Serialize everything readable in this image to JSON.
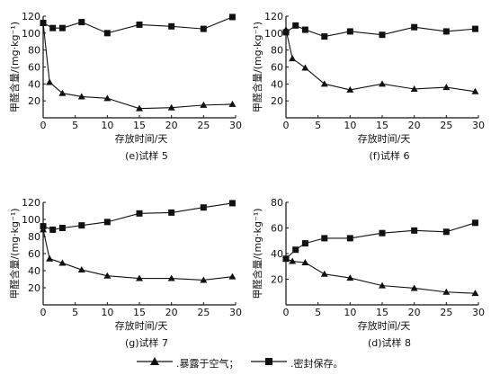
{
  "chart_data": [
    {
      "type": "line",
      "caption": "(e)试样 5",
      "xlabel": "存放时间/天",
      "ylabel": "甲醛含量/(mg·kg⁻¹)",
      "xlim": [
        0,
        30
      ],
      "ylim": [
        0,
        120
      ],
      "xticks": [
        0,
        5,
        10,
        15,
        20,
        25,
        30
      ],
      "yticks": [
        20,
        40,
        60,
        80,
        100,
        120
      ],
      "series": [
        {
          "name": "暴露于空气",
          "marker": "triangle",
          "x": [
            0,
            1,
            3,
            6,
            10,
            15,
            20,
            25,
            29.5
          ],
          "y": [
            112,
            42,
            29,
            25,
            23,
            11,
            12,
            15,
            16
          ]
        },
        {
          "name": "密封保存",
          "marker": "square",
          "x": [
            0,
            1.5,
            3,
            6,
            10,
            15,
            20,
            25,
            29.5
          ],
          "y": [
            112,
            106,
            106,
            113,
            100,
            110,
            108,
            105,
            119
          ]
        }
      ]
    },
    {
      "type": "line",
      "caption": "(f)试样 6",
      "xlabel": "存放时间/天",
      "ylabel": "甲醛含量/(mg·kg⁻¹)",
      "xlim": [
        0,
        30
      ],
      "ylim": [
        0,
        120
      ],
      "xticks": [
        0,
        5,
        10,
        15,
        20,
        25,
        30
      ],
      "yticks": [
        20,
        40,
        60,
        80,
        100,
        120
      ],
      "series": [
        {
          "name": "暴露于空气",
          "marker": "triangle",
          "x": [
            0,
            1,
            3,
            6,
            10,
            15,
            20,
            25,
            29.5
          ],
          "y": [
            104,
            70,
            59,
            40,
            33,
            40,
            34,
            36,
            31
          ]
        },
        {
          "name": "密封保存",
          "marker": "square",
          "x": [
            0,
            1.5,
            3,
            6,
            10,
            15,
            20,
            25,
            29.5
          ],
          "y": [
            101,
            109,
            104,
            96,
            102,
            98,
            107,
            102,
            105
          ]
        }
      ]
    },
    {
      "type": "line",
      "caption": "(g)试样 7",
      "xlabel": "存放时间/天",
      "ylabel": "甲醛含量/(mg·kg⁻¹)",
      "xlim": [
        0,
        30
      ],
      "ylim": [
        0,
        120
      ],
      "xticks": [
        0,
        5,
        10,
        15,
        20,
        25,
        30
      ],
      "yticks": [
        20,
        40,
        60,
        80,
        100,
        120
      ],
      "series": [
        {
          "name": "暴露于空气",
          "marker": "triangle",
          "x": [
            0,
            1,
            3,
            6,
            10,
            15,
            20,
            25,
            29.5
          ],
          "y": [
            88,
            54,
            49,
            41,
            34,
            31,
            31,
            29,
            33
          ]
        },
        {
          "name": "密封保存",
          "marker": "square",
          "x": [
            0,
            1.5,
            3,
            6,
            10,
            15,
            20,
            25,
            29.5
          ],
          "y": [
            92,
            88,
            90,
            93,
            97,
            107,
            108,
            114,
            119
          ]
        }
      ]
    },
    {
      "type": "line",
      "caption": "(d)试样 8",
      "xlabel": "存放时间/天",
      "ylabel": "甲醛含量/(mg·kg⁻¹)",
      "xlim": [
        0,
        30
      ],
      "ylim": [
        0,
        80
      ],
      "xticks": [
        0,
        5,
        10,
        15,
        20,
        25,
        30
      ],
      "yticks": [
        20,
        40,
        60,
        80
      ],
      "series": [
        {
          "name": "暴露于空气",
          "marker": "triangle",
          "x": [
            0,
            1,
            3,
            6,
            10,
            15,
            20,
            25,
            29.5
          ],
          "y": [
            36,
            34,
            33,
            24,
            21,
            15,
            13,
            10,
            9
          ]
        },
        {
          "name": "密封保存",
          "marker": "square",
          "x": [
            0,
            1.5,
            3,
            6,
            10,
            15,
            20,
            25,
            29.5
          ],
          "y": [
            36,
            43,
            48,
            52,
            52,
            56,
            58,
            57,
            64
          ]
        }
      ]
    }
  ],
  "legend": {
    "exposed_label": ".暴露于空气；",
    "sealed_label": ".密封保存。"
  }
}
